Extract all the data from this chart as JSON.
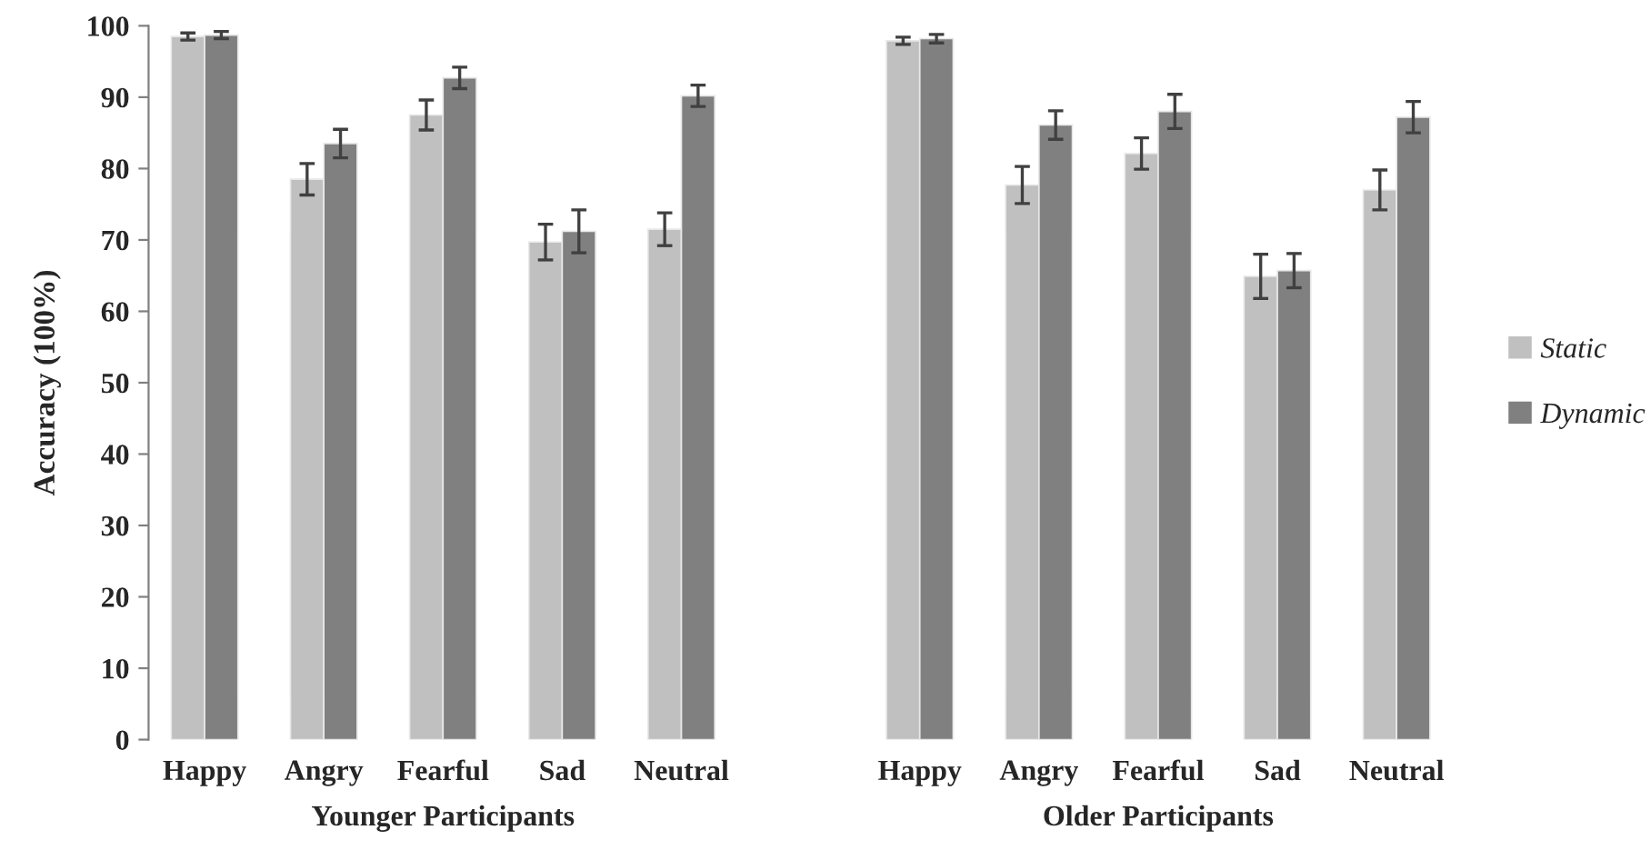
{
  "chart_data": {
    "type": "bar",
    "categories": [
      "Happy",
      "Angry",
      "Fearful",
      "Sad",
      "Neutral",
      null,
      "Happy",
      "Angry",
      "Fearful",
      "Sad",
      "Neutral"
    ],
    "series": [
      {
        "name": "Static",
        "color": "#c0c0c0",
        "values": [
          98.5,
          78.5,
          87.5,
          69.7,
          71.5,
          null,
          97.9,
          77.7,
          82.1,
          64.9,
          77.0
        ],
        "errors": [
          0.5,
          2.2,
          2.1,
          2.5,
          2.3,
          null,
          0.5,
          2.6,
          2.2,
          3.1,
          2.8
        ]
      },
      {
        "name": "Dynamic",
        "color": "#808080",
        "values": [
          98.7,
          83.5,
          92.7,
          71.2,
          90.2,
          null,
          98.2,
          86.1,
          88.0,
          65.7,
          87.2
        ],
        "errors": [
          0.5,
          2.0,
          1.5,
          3.0,
          1.5,
          null,
          0.6,
          2.0,
          2.4,
          2.4,
          2.2
        ]
      }
    ],
    "ylabel": "Accuracy (100%)",
    "ylim": [
      0,
      100
    ],
    "yticks": [
      0,
      10,
      20,
      30,
      40,
      50,
      60,
      70,
      80,
      90,
      100
    ],
    "annotations": [
      "Younger Participants",
      "Older Participants"
    ],
    "legend": "right",
    "grid": false
  }
}
